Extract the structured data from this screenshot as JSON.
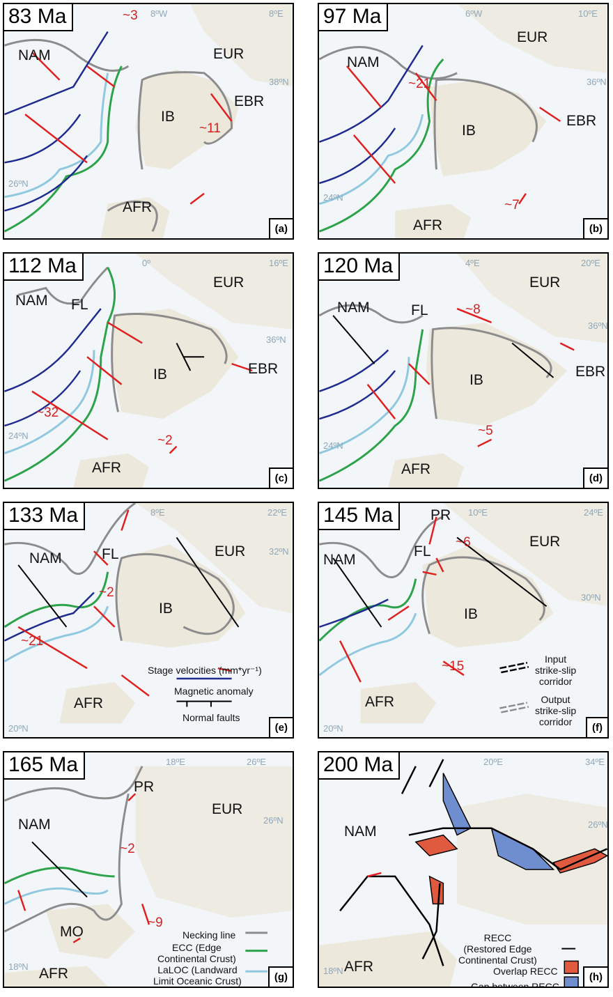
{
  "colors": {
    "necking": "#8c8c8c",
    "ecc": "#2ca24a",
    "laloc": "#8fc8df",
    "magnetic": "#1f2b8f",
    "velocity": "#e02020",
    "overlap": "#e05a40",
    "gap": "#6f8ed0",
    "land": "#ece8dc",
    "sea": "#dde9ef"
  },
  "panels": [
    {
      "age": "83 Ma",
      "label": "(a)",
      "plates": [
        "NAM",
        "EUR",
        "IB",
        "EBR",
        "AFR"
      ],
      "rates": [
        "~3",
        "~11"
      ],
      "grid": [
        "8ºW",
        "8ºE",
        "38ºN",
        "26ºN"
      ]
    },
    {
      "age": "97 Ma",
      "label": "(b)",
      "plates": [
        "NAM",
        "EUR",
        "IB",
        "EBR",
        "AFR"
      ],
      "rates": [
        "~21",
        "~7"
      ],
      "grid": [
        "6ºW",
        "10ºE",
        "36ºN",
        "24ºN"
      ]
    },
    {
      "age": "112 Ma",
      "label": "(c)",
      "plates": [
        "NAM",
        "FL",
        "EUR",
        "IB",
        "EBR",
        "AFR"
      ],
      "rates": [
        "~32",
        "~2"
      ],
      "grid": [
        "0º",
        "16ºE",
        "36ºN",
        "24ºN"
      ]
    },
    {
      "age": "120 Ma",
      "label": "(d)",
      "plates": [
        "NAM",
        "FL",
        "EUR",
        "IB",
        "EBR",
        "AFR"
      ],
      "rates": [
        "~8",
        "~5"
      ],
      "grid": [
        "4ºE",
        "20ºE",
        "36ºN",
        "24ºN"
      ]
    },
    {
      "age": "133 Ma",
      "label": "(e)",
      "plates": [
        "NAM",
        "FL",
        "EUR",
        "IB",
        "AFR"
      ],
      "rates": [
        "~2",
        "~21"
      ],
      "grid": [
        "8ºE",
        "22ºE",
        "32ºN",
        "20ºN"
      ]
    },
    {
      "age": "145 Ma",
      "label": "(f)",
      "plates": [
        "PR",
        "NAM",
        "FL",
        "EUR",
        "IB",
        "AFR"
      ],
      "rates": [
        "~6",
        "~15"
      ],
      "grid": [
        "10ºE",
        "24ºE",
        "30ºN",
        "20ºN"
      ]
    },
    {
      "age": "165 Ma",
      "label": "(g)",
      "plates": [
        "PR",
        "NAM",
        "EUR",
        "MO",
        "AFR"
      ],
      "rates": [
        "~2",
        "~9"
      ],
      "grid": [
        "18ºE",
        "26ºE",
        "26ºN",
        "18ºN"
      ]
    },
    {
      "age": "200 Ma",
      "label": "(h)",
      "plates": [
        "NAM",
        "AFR"
      ],
      "rates": [],
      "grid": [
        "20ºE",
        "34ºE",
        "26ºN",
        "18ºN"
      ]
    }
  ],
  "legend_e": {
    "velocity": "Stage velocities (mm*yr⁻¹)",
    "magnetic": "Magnetic anomaly",
    "faults": "Normal faults"
  },
  "legend_f": {
    "input_1": "Input",
    "input_2": "strike-slip",
    "input_3": "corridor",
    "output_1": "Output",
    "output_2": "strike-slip",
    "output_3": "corridor"
  },
  "legend_g": {
    "necking": "Necking line",
    "ecc_1": "ECC (Edge",
    "ecc_2": "Continental Crust)",
    "laloc_1": "LaLOC (Landward",
    "laloc_2": "Limit Oceanic Crust)"
  },
  "legend_h": {
    "recc_1": "RECC",
    "recc_2": "(Restored Edge",
    "recc_3": "Continental Crust)",
    "overlap": "Overlap RECC",
    "gap": "Gap between RECC"
  }
}
